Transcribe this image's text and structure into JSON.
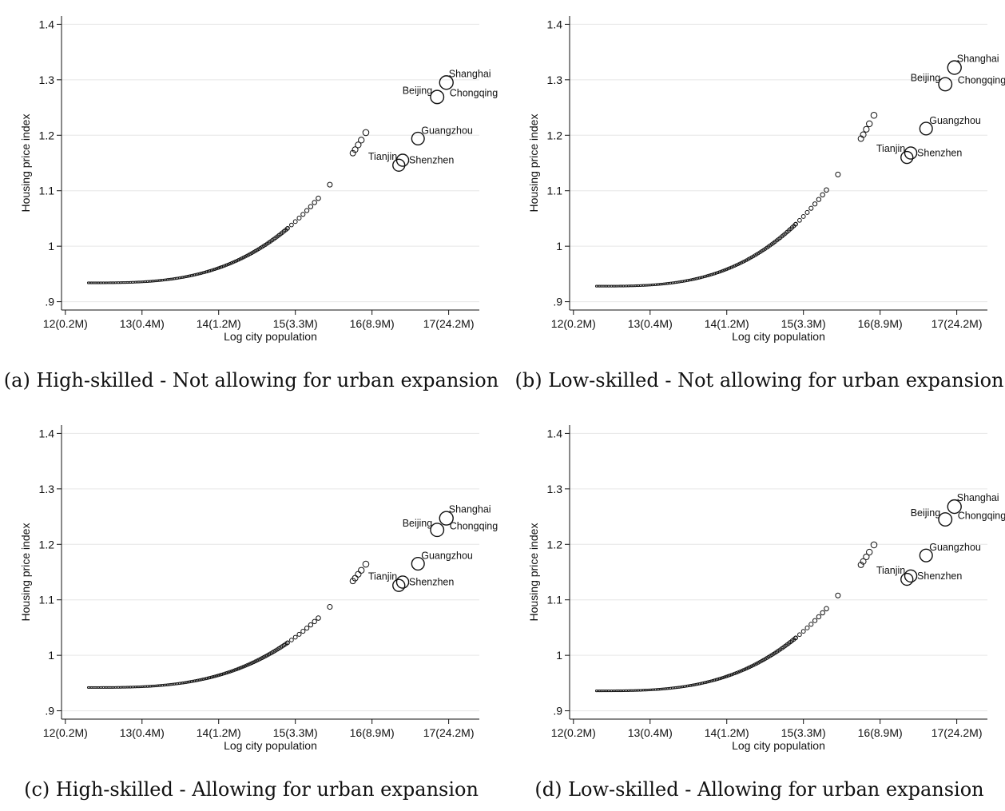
{
  "charts": [
    {
      "caption": "(a) High-skilled - Not allowing for urban expansion",
      "chart_data": {
        "type": "line",
        "xlabel": "Log city population",
        "ylabel": "Housing price index",
        "xlim": [
          11.95,
          17.4
        ],
        "ylim": [
          0.885,
          1.415
        ],
        "x_ticks": [
          12,
          13,
          14,
          15,
          16,
          17
        ],
        "x_tick_labels": [
          "12(0.2M)",
          "13(0.4M)",
          "14(1.2M)",
          "15(3.3M)",
          "16(8.9M)",
          "17(24.2M)"
        ],
        "y_ticks": [
          0.9,
          1.0,
          1.1,
          1.2,
          1.3,
          1.4
        ],
        "y_tick_labels": [
          ".9",
          "1",
          "1.1",
          "1.2",
          "1.3",
          "1.4"
        ],
        "grid": true,
        "curve": {
          "x0": 12.3,
          "y0": 0.934,
          "b": 0.7276,
          "p": 3.06
        },
        "labeled_cities": [
          {
            "name": "Shanghai",
            "x": 16.97,
            "y": 1.295
          },
          {
            "name": "Beijing",
            "x": 16.85,
            "y": 1.269
          },
          {
            "name": "Chongqing",
            "x": 16.86,
            "y": 1.273
          },
          {
            "name": "Guangzhou",
            "x": 16.6,
            "y": 1.194
          },
          {
            "name": "Tianjin",
            "x": 16.35,
            "y": 1.146
          },
          {
            "name": "Shenzhen",
            "x": 16.4,
            "y": 1.155
          }
        ]
      }
    },
    {
      "caption": "(b) Low-skilled - Not allowing for urban expansion",
      "chart_data": {
        "type": "line",
        "xlabel": "Log city population",
        "ylabel": "Housing price index",
        "xlim": [
          11.95,
          17.4
        ],
        "ylim": [
          0.885,
          1.415
        ],
        "x_ticks": [
          12,
          13,
          14,
          15,
          16,
          17
        ],
        "x_tick_labels": [
          "12(0.2M)",
          "13(0.4M)",
          "14(1.2M)",
          "15(3.3M)",
          "16(8.9M)",
          "17(24.2M)"
        ],
        "y_ticks": [
          0.9,
          1.0,
          1.1,
          1.2,
          1.3,
          1.4
        ],
        "y_tick_labels": [
          ".9",
          "1",
          "1.1",
          "1.2",
          "1.3",
          "1.4"
        ],
        "grid": true,
        "curve": {
          "x0": 12.3,
          "y0": 0.928,
          "b": 0.8276,
          "p": 3.06
        },
        "labeled_cities": [
          {
            "name": "Shanghai",
            "x": 16.97,
            "y": 1.322
          },
          {
            "name": "Beijing",
            "x": 16.85,
            "y": 1.292
          },
          {
            "name": "Chongqing",
            "x": 16.86,
            "y": 1.296
          },
          {
            "name": "Guangzhou",
            "x": 16.6,
            "y": 1.212
          },
          {
            "name": "Tianjin",
            "x": 16.35,
            "y": 1.16
          },
          {
            "name": "Shenzhen",
            "x": 16.4,
            "y": 1.168
          }
        ]
      }
    },
    {
      "caption": "(c) High-skilled - Allowing for urban expansion",
      "chart_data": {
        "type": "line",
        "xlabel": "Log city population",
        "ylabel": "Housing price index",
        "xlim": [
          11.95,
          17.4
        ],
        "ylim": [
          0.885,
          1.415
        ],
        "x_ticks": [
          12,
          13,
          14,
          15,
          16,
          17
        ],
        "x_tick_labels": [
          "12(0.2M)",
          "13(0.4M)",
          "14(1.2M)",
          "15(3.3M)",
          "16(8.9M)",
          "17(24.2M)"
        ],
        "y_ticks": [
          0.9,
          1.0,
          1.1,
          1.2,
          1.3,
          1.4
        ],
        "y_tick_labels": [
          ".9",
          "1",
          "1.1",
          "1.2",
          "1.3",
          "1.4"
        ],
        "grid": true,
        "curve": {
          "x0": 12.3,
          "y0": 0.942,
          "b": 0.5973,
          "p": 3.06
        },
        "labeled_cities": [
          {
            "name": "Shanghai",
            "x": 16.97,
            "y": 1.247
          },
          {
            "name": "Beijing",
            "x": 16.85,
            "y": 1.226
          },
          {
            "name": "Chongqing",
            "x": 16.86,
            "y": 1.23
          },
          {
            "name": "Guangzhou",
            "x": 16.6,
            "y": 1.165
          },
          {
            "name": "Tianjin",
            "x": 16.35,
            "y": 1.126
          },
          {
            "name": "Shenzhen",
            "x": 16.4,
            "y": 1.132
          }
        ]
      }
    },
    {
      "caption": "(d) Low-skilled - Allowing for urban expansion",
      "chart_data": {
        "type": "line",
        "xlabel": "Log city population",
        "ylabel": "Housing price index",
        "xlim": [
          11.95,
          17.4
        ],
        "ylim": [
          0.885,
          1.415
        ],
        "x_ticks": [
          12,
          13,
          14,
          15,
          16,
          17
        ],
        "x_tick_labels": [
          "12(0.2M)",
          "13(0.4M)",
          "14(1.2M)",
          "15(3.3M)",
          "16(8.9M)",
          "17(24.2M)"
        ],
        "y_ticks": [
          0.9,
          1.0,
          1.1,
          1.2,
          1.3,
          1.4
        ],
        "y_tick_labels": [
          ".9",
          "1",
          "1.1",
          "1.2",
          "1.3",
          "1.4"
        ],
        "grid": true,
        "curve": {
          "x0": 12.3,
          "y0": 0.936,
          "b": 0.7068,
          "p": 3.06
        },
        "labeled_cities": [
          {
            "name": "Shanghai",
            "x": 16.97,
            "y": 1.268
          },
          {
            "name": "Beijing",
            "x": 16.85,
            "y": 1.245
          },
          {
            "name": "Chongqing",
            "x": 16.86,
            "y": 1.249
          },
          {
            "name": "Guangzhou",
            "x": 16.6,
            "y": 1.18
          },
          {
            "name": "Tianjin",
            "x": 16.35,
            "y": 1.137
          },
          {
            "name": "Shenzhen",
            "x": 16.4,
            "y": 1.143
          }
        ]
      }
    }
  ]
}
